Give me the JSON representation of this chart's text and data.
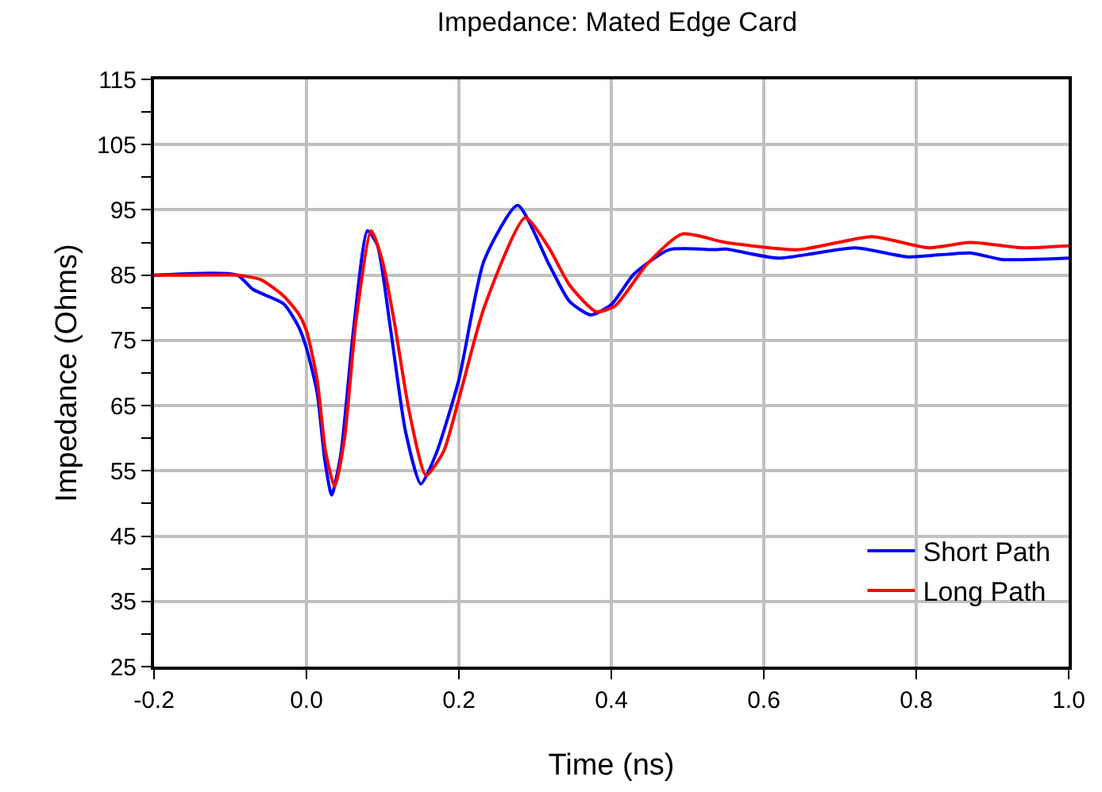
{
  "chart_data": {
    "type": "line",
    "title": "Impedance: Mated Edge Card",
    "xlabel": "Time (ns)",
    "ylabel": "Impedance (Ohms)",
    "xlim": [
      -0.2,
      1.0
    ],
    "xticks": [
      -0.2,
      {
        "value": 0,
        "label": "0.0"
      },
      0.2,
      0.4,
      0.6,
      0.8,
      {
        "value": 1,
        "label": "1.0"
      }
    ],
    "ylim": [
      25,
      115
    ],
    "yticks": [
      25,
      {
        "value": 30,
        "label": null
      },
      35,
      {
        "value": 40,
        "label": null
      },
      45,
      {
        "value": 50,
        "label": null
      },
      55,
      {
        "value": 60,
        "label": null
      },
      65,
      {
        "value": 70,
        "label": null
      },
      75,
      {
        "value": 80,
        "label": null
      },
      85,
      {
        "value": 90,
        "label": null
      },
      95,
      {
        "value": 100,
        "label": null
      },
      105,
      {
        "value": 110,
        "label": null
      },
      115
    ],
    "grid": true,
    "legend": "bottom right",
    "marker": "none",
    "line_style": "solid",
    "series": [
      {
        "name": "Short Path",
        "color": "#0000ff",
        "x": [
          -0.2,
          -0.091,
          -0.07,
          -0.03,
          -0.01,
          0.0,
          0.014,
          0.024,
          0.033,
          0.045,
          0.062,
          0.08,
          0.093,
          0.11,
          0.13,
          0.15,
          0.17,
          0.2,
          0.233,
          0.277,
          0.318,
          0.345,
          0.373,
          0.4,
          0.43,
          0.476,
          0.537,
          0.55,
          0.619,
          0.72,
          0.789,
          0.871,
          0.912,
          1.0
        ],
        "values": [
          85,
          85,
          82.8,
          80.6,
          77,
          73.8,
          67,
          56.7,
          51.3,
          57.5,
          77,
          91.8,
          89.6,
          77,
          61,
          53,
          57.6,
          69,
          87.2,
          95.7,
          86.7,
          81,
          78.9,
          80.5,
          85.2,
          88.9,
          88.9,
          89,
          87.6,
          89.2,
          87.8,
          88.4,
          87.4,
          87.6
        ]
      },
      {
        "name": "Long Path",
        "color": "#ff0000",
        "x": [
          -0.2,
          -0.15,
          -0.09,
          -0.06,
          -0.03,
          -0.01,
          0.0,
          0.014,
          0.025,
          0.037,
          0.05,
          0.065,
          0.085,
          0.1,
          0.115,
          0.135,
          0.157,
          0.18,
          0.2,
          0.233,
          0.287,
          0.318,
          0.345,
          0.38,
          0.405,
          0.447,
          0.493,
          0.55,
          0.646,
          0.742,
          0.816,
          0.871,
          0.939,
          1.0
        ],
        "values": [
          85,
          85,
          85,
          84.3,
          81.8,
          79,
          76.5,
          69,
          58,
          52.6,
          60,
          78,
          91.8,
          87,
          78,
          64,
          54.3,
          58,
          66,
          80,
          93.8,
          89.2,
          83.5,
          79.4,
          80.3,
          86.7,
          91.3,
          90,
          88.9,
          90.9,
          89.2,
          90,
          89.2,
          89.5
        ]
      }
    ]
  }
}
